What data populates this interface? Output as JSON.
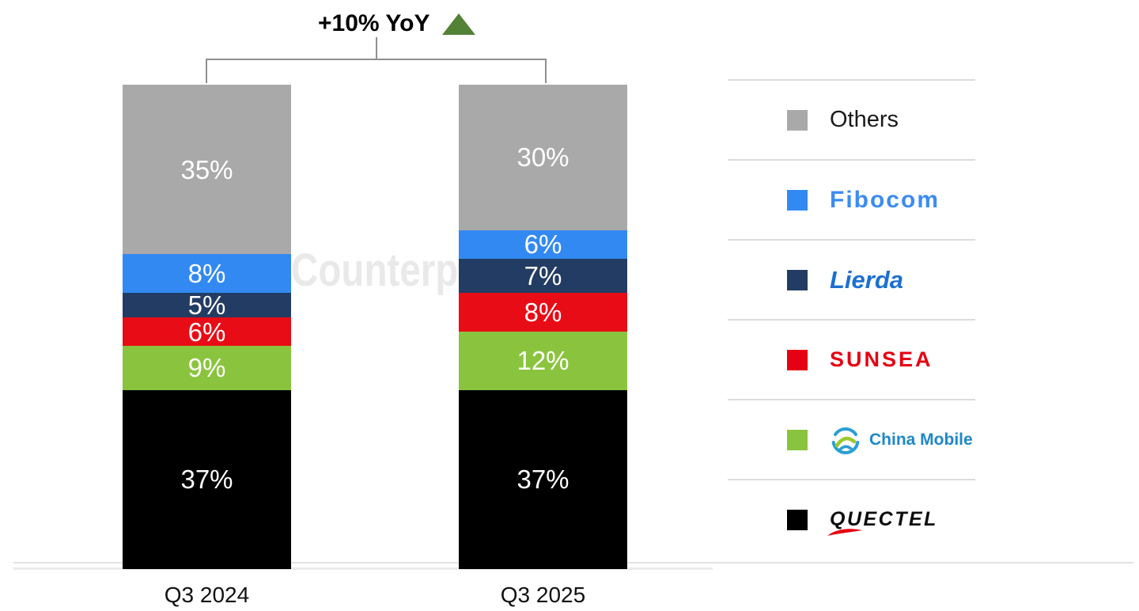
{
  "header": {
    "title": "+10% YoY",
    "arrow_color": "#538135"
  },
  "watermark": "Counterpoint",
  "chart_data": {
    "type": "bar",
    "stacked": true,
    "title": "+10% YoY",
    "categories": [
      "Q3 2024",
      "Q3 2025"
    ],
    "series": [
      {
        "name": "Others",
        "color": "#a9a9a9",
        "values": [
          35,
          30
        ]
      },
      {
        "name": "Fibocom",
        "color": "#3389f2",
        "values": [
          8,
          6
        ]
      },
      {
        "name": "Lierda",
        "color": "#233c63",
        "values": [
          5,
          7
        ]
      },
      {
        "name": "Sunsea",
        "color": "#e80c16",
        "values": [
          6,
          8
        ]
      },
      {
        "name": "China Mobile",
        "color": "#8ac43e",
        "values": [
          9,
          12
        ]
      },
      {
        "name": "Quectel",
        "color": "#000000",
        "values": [
          37,
          37
        ]
      }
    ],
    "value_suffix": "%",
    "ylim": [
      0,
      100
    ],
    "label_color": "#ffffff",
    "legend_position": "right",
    "grid": false
  },
  "legend": {
    "items": [
      {
        "label": "Others",
        "color": "#a9a9a9",
        "text_color": "#1a1a1a"
      },
      {
        "label": "Fibocom",
        "color": "#3389f2",
        "text_color": "#3c8cf0"
      },
      {
        "label": "Lierda",
        "color": "#233c63",
        "text_color": "#1d6fd1"
      },
      {
        "label": "SUNSEA",
        "color": "#e60013",
        "text_color": "#e60013"
      },
      {
        "label": "China Mobile",
        "color": "#8ac43e",
        "text_color": "#1e88c8"
      },
      {
        "label": "QUECTEL",
        "color": "#000000",
        "text_color": "#0d0d0d"
      }
    ]
  }
}
